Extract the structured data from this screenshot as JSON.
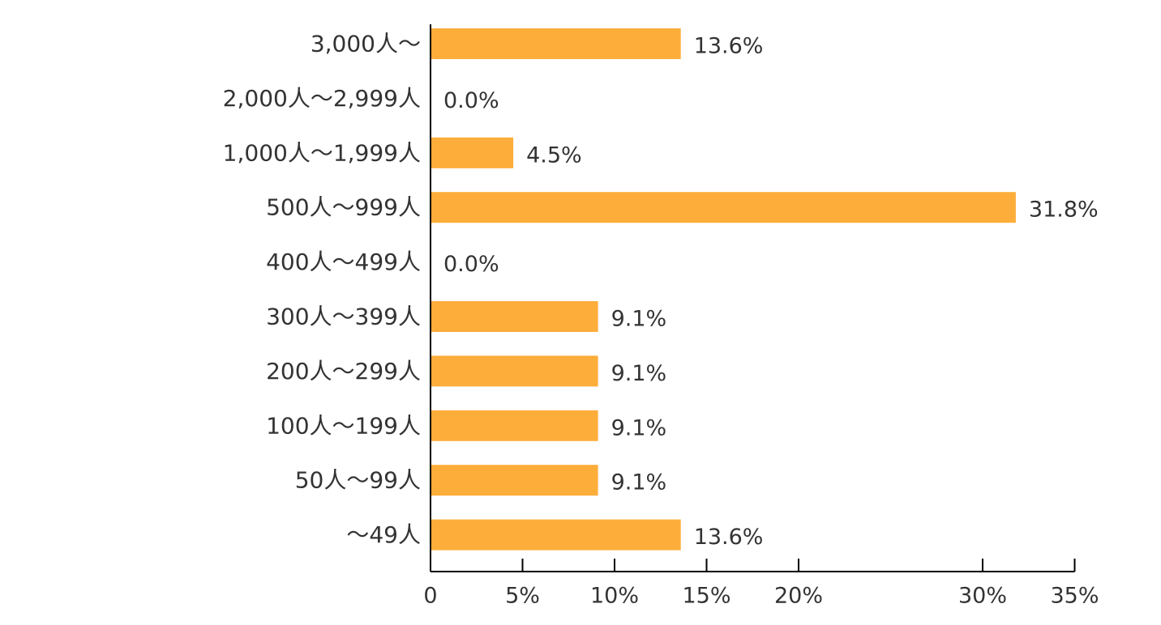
{
  "chart_data": {
    "type": "bar",
    "orientation": "horizontal",
    "title": "",
    "xlabel": "",
    "ylabel": "",
    "categories": [
      "3,000人～",
      "2,000人～2,999人",
      "1,000人～1,999人",
      "500人～999人",
      "400人～499人",
      "300人～399人",
      "200人～299人",
      "100人～199人",
      "50人～99人",
      "～49人"
    ],
    "values": [
      13.6,
      0.0,
      4.5,
      31.8,
      0.0,
      9.1,
      9.1,
      9.1,
      9.1,
      13.6
    ],
    "value_labels": [
      "13.6%",
      "0.0%",
      "4.5%",
      "31.8%",
      "0.0%",
      "9.1%",
      "9.1%",
      "9.1%",
      "9.1%",
      "13.6%"
    ],
    "xlim": [
      0,
      35
    ],
    "x_tick_values": [
      0,
      5,
      10,
      15,
      20,
      30,
      35
    ],
    "x_tick_labels": [
      "0",
      "5%",
      "10%",
      "15%",
      "20%",
      "30%",
      "35%"
    ],
    "bar_color": "#FDAD3A",
    "text_color": "#333333",
    "axis_color": "#000000",
    "grid": false,
    "legend": "none"
  }
}
